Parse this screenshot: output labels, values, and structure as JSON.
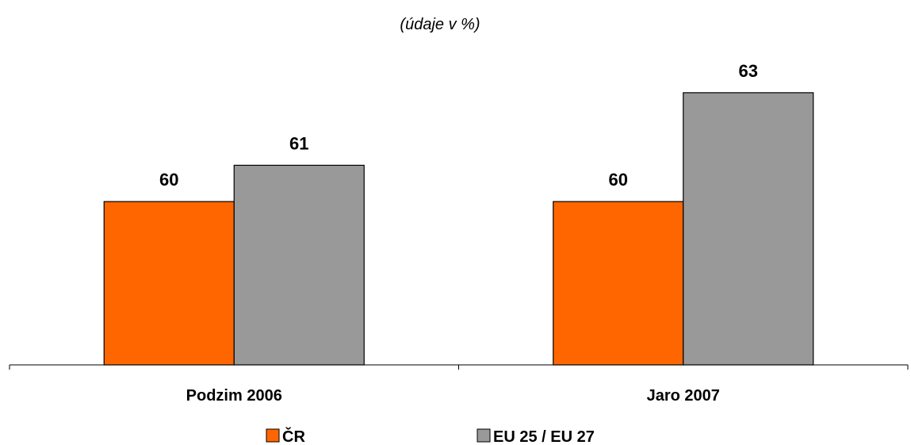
{
  "chart_data": {
    "type": "bar",
    "title": "",
    "subtitle": "(údaje v %)",
    "xlabel": "",
    "ylabel": "",
    "categories": [
      "Podzim 2006",
      "Jaro 2007"
    ],
    "series": [
      {
        "name": "ČR",
        "values": [
          60,
          60
        ],
        "color": "#ff6600"
      },
      {
        "name": "EU 25 / EU 27",
        "values": [
          61,
          63
        ],
        "color": "#999999"
      }
    ],
    "ylim": [
      55.5,
      63.5
    ],
    "grid": false,
    "legend_position": "bottom"
  }
}
